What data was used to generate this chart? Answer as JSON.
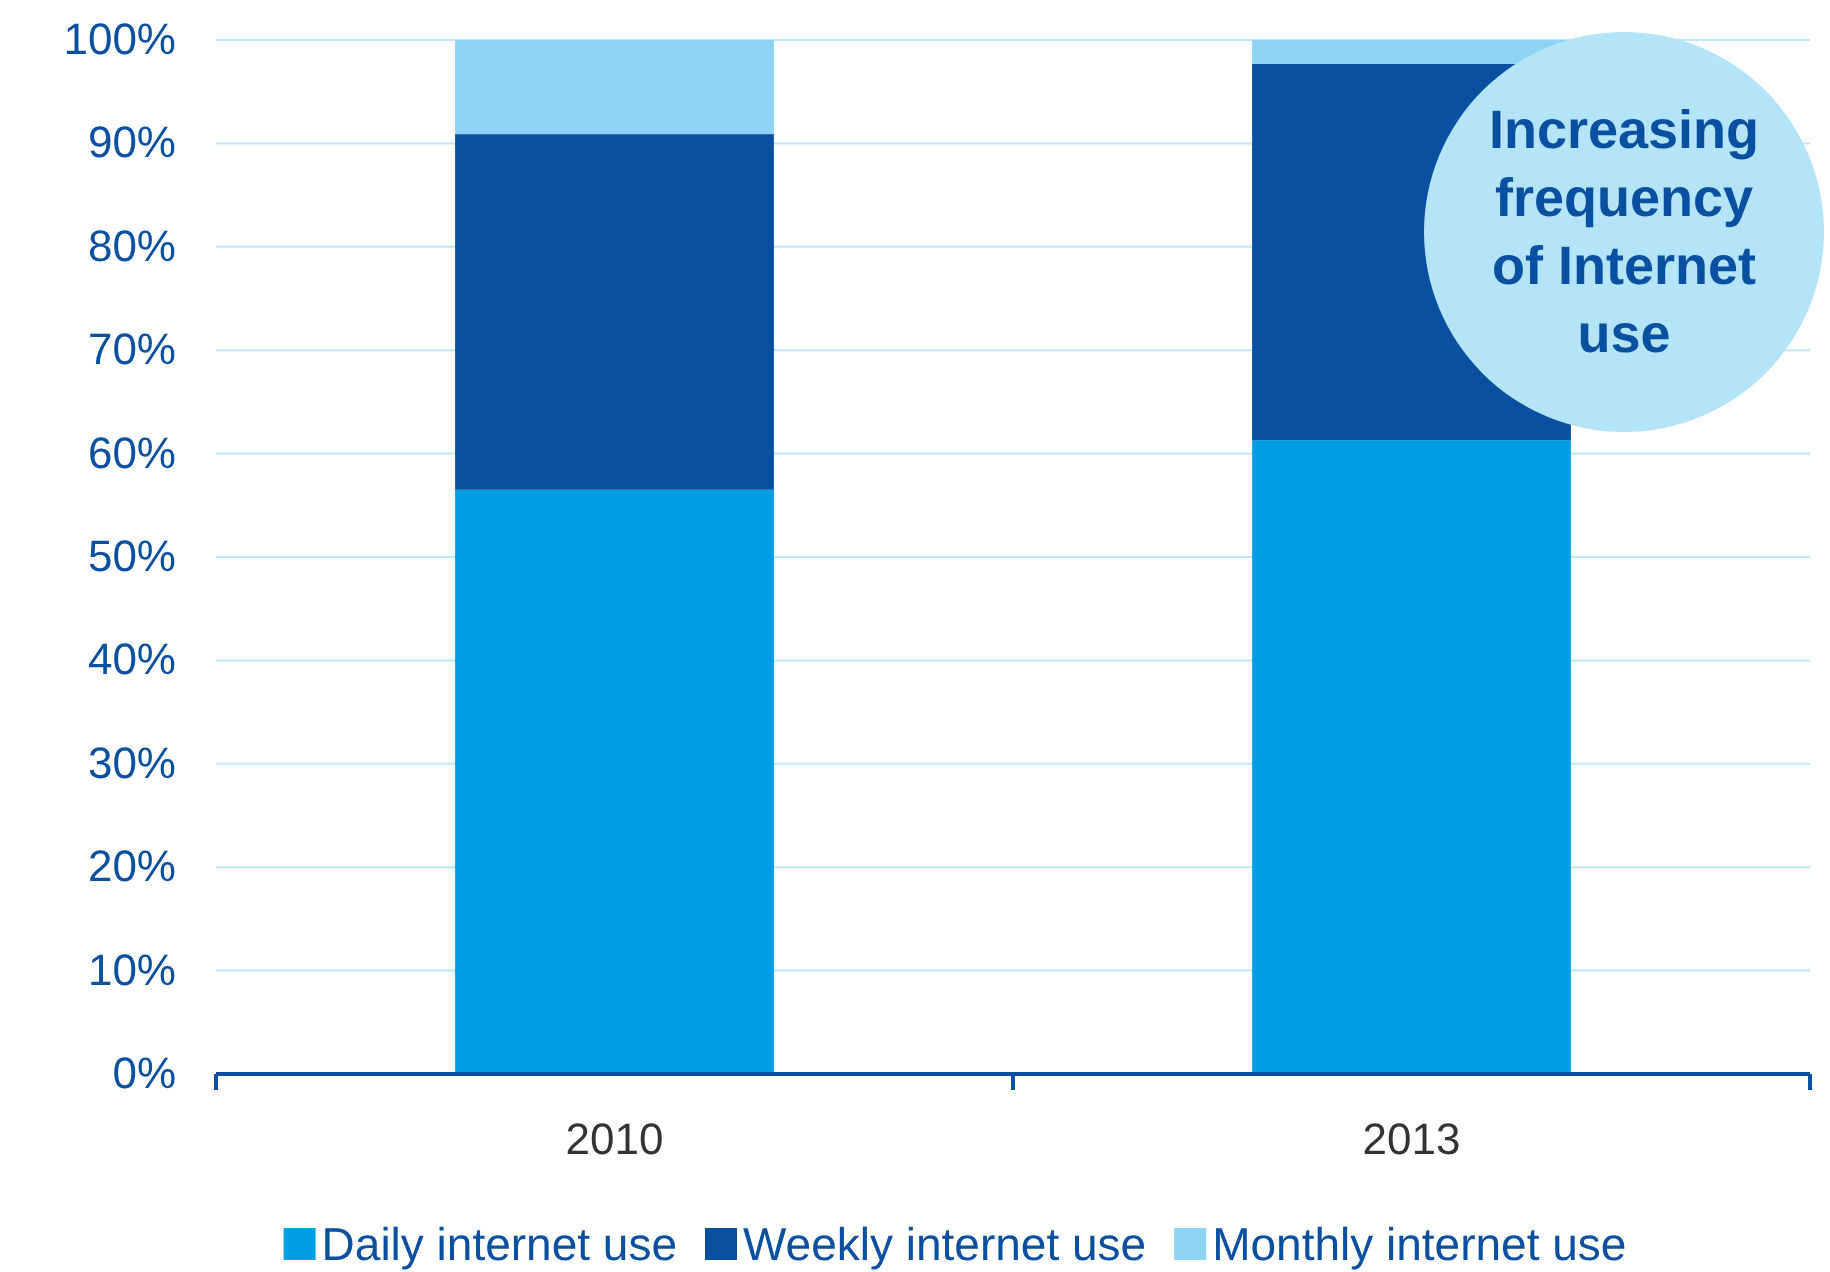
{
  "chart_data": {
    "type": "bar",
    "stacked": true,
    "categories": [
      "2010",
      "2013"
    ],
    "series": [
      {
        "name": "Daily internet use",
        "color": "#009fe3",
        "values": [
          56.5,
          61.3
        ]
      },
      {
        "name": "Weekly internet use",
        "color": "#0a50a1",
        "values": [
          34.4,
          36.4
        ]
      },
      {
        "name": "Monthly internet use",
        "color": "#8dd3f3",
        "values": [
          9.1,
          2.3
        ]
      }
    ],
    "ylim": [
      0,
      100
    ],
    "yticks": [
      {
        "value": 0,
        "label": "0%"
      },
      {
        "value": 10,
        "label": "10%"
      },
      {
        "value": 20,
        "label": "20%"
      },
      {
        "value": 30,
        "label": "30%"
      },
      {
        "value": 40,
        "label": "40%"
      },
      {
        "value": 50,
        "label": "50%"
      },
      {
        "value": 60,
        "label": "60%"
      },
      {
        "value": 70,
        "label": "70%"
      },
      {
        "value": 80,
        "label": "80%"
      },
      {
        "value": 90,
        "label": "90%"
      },
      {
        "value": 100,
        "label": "100%"
      }
    ],
    "grid": "y",
    "legend": "bottom",
    "annotations": [
      "Increasing frequency of Internet use"
    ]
  }
}
